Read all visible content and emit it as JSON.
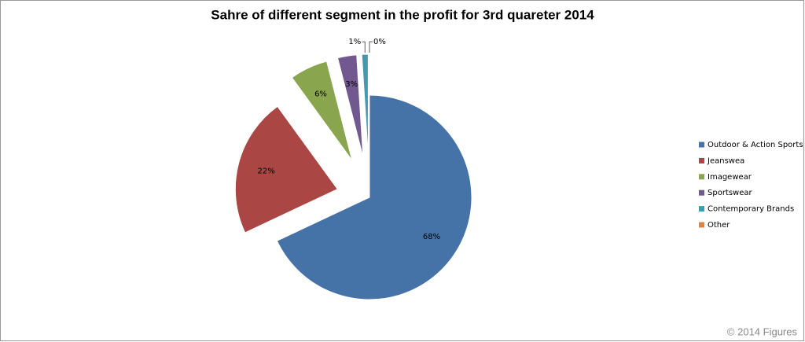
{
  "chart_data": {
    "type": "pie",
    "title": "Sahre of different segment in the profit for 3rd quareter 2014",
    "categories": [
      "Outdoor & Action Sports",
      "Jeanswea",
      "Imagewear",
      "Sportswear",
      "Contemporary Brands",
      "Other"
    ],
    "values": [
      68,
      22,
      6,
      3,
      1,
      0
    ],
    "value_labels": [
      "68%",
      "22%",
      "6%",
      "3%",
      "1%",
      "0%"
    ],
    "colors": [
      "#4572a7",
      "#aa4643",
      "#89a54e",
      "#71588f",
      "#4198af",
      "#db843d"
    ],
    "legend": "right",
    "footnote": "© 2014 Figures"
  }
}
